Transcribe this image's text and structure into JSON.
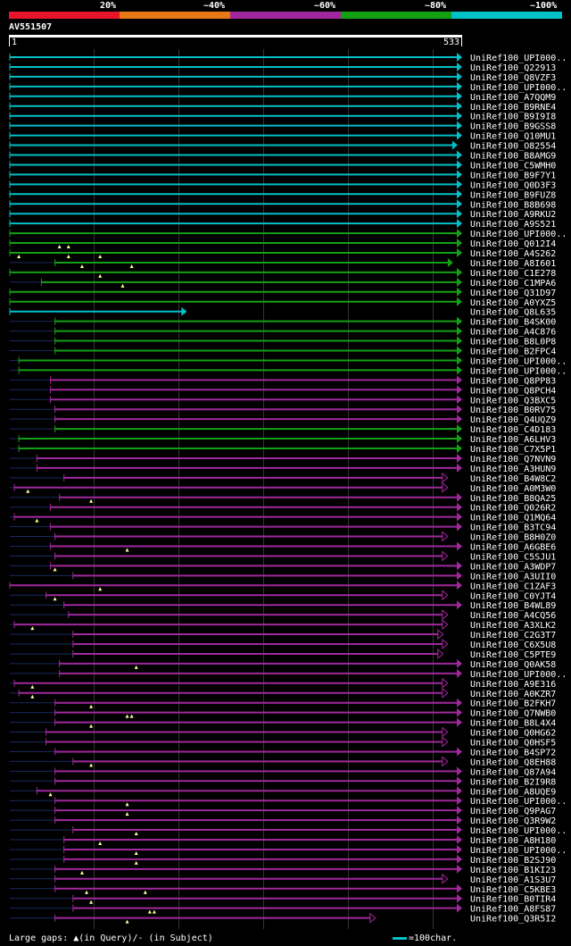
{
  "legend": [
    {
      "label": "20%",
      "color": "#e8142a"
    },
    {
      "label": "~40%",
      "color": "#e87814"
    },
    {
      "label": "~60%",
      "color": "#a0289c"
    },
    {
      "label": "~80%",
      "color": "#14a014"
    },
    {
      "label": "~100%",
      "color": "#00c0c8"
    }
  ],
  "query": "AV551507",
  "ruler": {
    "start": "1",
    "end": "533"
  },
  "footer": {
    "gaps": "Large gaps: ▲(in Query)/- (in Subject)",
    "scale": "=100char."
  },
  "colors": {
    "cyan": "#00c0c8",
    "green": "#14a014",
    "purple": "#a0289c",
    "dim": "#1a2a5a",
    "gap": "#ffff99"
  },
  "hits": [
    {
      "id": "UniRef100_UPI000..",
      "c": "cyan",
      "s": 0.0,
      "e": 1.0,
      "t": "a"
    },
    {
      "id": "UniRef100_Q22913",
      "c": "cyan",
      "s": 0.0,
      "e": 1.0,
      "t": "a"
    },
    {
      "id": "UniRef100_Q8VZF3",
      "c": "cyan",
      "s": 0.0,
      "e": 1.0,
      "t": "a"
    },
    {
      "id": "UniRef100_UPI000..",
      "c": "cyan",
      "s": 0.0,
      "e": 1.0,
      "t": "a"
    },
    {
      "id": "UniRef100_A7QQM9",
      "c": "cyan",
      "s": 0.0,
      "e": 1.0,
      "t": "a"
    },
    {
      "id": "UniRef100_B9RNE4",
      "c": "cyan",
      "s": 0.0,
      "e": 1.0,
      "t": "a"
    },
    {
      "id": "UniRef100_B9I9I8",
      "c": "cyan",
      "s": 0.0,
      "e": 1.0,
      "t": "a"
    },
    {
      "id": "UniRef100_B9GSS8",
      "c": "cyan",
      "s": 0.0,
      "e": 1.0,
      "t": "a"
    },
    {
      "id": "UniRef100_Q10MU1",
      "c": "cyan",
      "s": 0.0,
      "e": 1.0,
      "t": "a"
    },
    {
      "id": "UniRef100_O82554",
      "c": "cyan",
      "s": 0.0,
      "e": 0.99,
      "t": "a"
    },
    {
      "id": "UniRef100_B8AMG9",
      "c": "cyan",
      "s": 0.0,
      "e": 1.0,
      "t": "a"
    },
    {
      "id": "UniRef100_C5WMH0",
      "c": "cyan",
      "s": 0.0,
      "e": 1.0,
      "t": "a"
    },
    {
      "id": "UniRef100_B9F7Y1",
      "c": "cyan",
      "s": 0.0,
      "e": 1.0,
      "t": "a"
    },
    {
      "id": "UniRef100_Q0D3F3",
      "c": "cyan",
      "s": 0.0,
      "e": 1.0,
      "t": "a"
    },
    {
      "id": "UniRef100_B9FUZ8",
      "c": "cyan",
      "s": 0.0,
      "e": 1.0,
      "t": "a"
    },
    {
      "id": "UniRef100_B8B698",
      "c": "cyan",
      "s": 0.0,
      "e": 1.0,
      "t": "a"
    },
    {
      "id": "UniRef100_A9RKU2",
      "c": "cyan",
      "s": 0.0,
      "e": 1.0,
      "t": "a"
    },
    {
      "id": "UniRef100_A9S521",
      "c": "cyan",
      "s": 0.0,
      "e": 1.0,
      "t": "a"
    },
    {
      "id": "UniRef100_UPI000..",
      "c": "green",
      "s": 0.0,
      "e": 1.0,
      "t": "a"
    },
    {
      "id": "UniRef100_Q012I4",
      "c": "green",
      "s": 0.0,
      "e": 1.0,
      "t": "a",
      "g": [
        0.11,
        0.13
      ]
    },
    {
      "id": "UniRef100_A4S262",
      "c": "green",
      "s": 0.0,
      "e": 1.0,
      "t": "a",
      "g": [
        0.02,
        0.13,
        0.2
      ]
    },
    {
      "id": "UniRef100_A8I601",
      "c": "green",
      "s": 0.1,
      "e": 0.98,
      "t": "a",
      "g": [
        0.16,
        0.27
      ]
    },
    {
      "id": "UniRef100_C1E278",
      "c": "green",
      "s": 0.0,
      "e": 1.0,
      "t": "a",
      "g": [
        0.2
      ]
    },
    {
      "id": "UniRef100_C1MPA6",
      "c": "green",
      "s": 0.07,
      "e": 1.0,
      "t": "a",
      "g": [
        0.25
      ]
    },
    {
      "id": "UniRef100_Q31D97",
      "c": "green",
      "s": 0.0,
      "e": 1.0,
      "t": "a"
    },
    {
      "id": "UniRef100_A0YXZ5",
      "c": "green",
      "s": 0.0,
      "e": 1.0,
      "t": "a"
    },
    {
      "id": "UniRef100_Q8L635",
      "c": "cyan",
      "s": 0.0,
      "e": 0.39,
      "t": "a"
    },
    {
      "id": "UniRef100_B4SK00",
      "c": "green",
      "s": 0.1,
      "e": 1.0,
      "t": "a"
    },
    {
      "id": "UniRef100_A4C876",
      "c": "green",
      "s": 0.1,
      "e": 1.0,
      "t": "a"
    },
    {
      "id": "UniRef100_B8L0P8",
      "c": "green",
      "s": 0.1,
      "e": 1.0,
      "t": "a"
    },
    {
      "id": "UniRef100_B2FPC4",
      "c": "green",
      "s": 0.1,
      "e": 1.0,
      "t": "a"
    },
    {
      "id": "UniRef100_UPI000..",
      "c": "green",
      "s": 0.02,
      "e": 1.0,
      "t": "a"
    },
    {
      "id": "UniRef100_UPI000..",
      "c": "green",
      "s": 0.02,
      "e": 1.0,
      "t": "a"
    },
    {
      "id": "UniRef100_Q8PP83",
      "c": "purple",
      "s": 0.09,
      "e": 1.0,
      "t": "a"
    },
    {
      "id": "UniRef100_Q8PCH4",
      "c": "purple",
      "s": 0.09,
      "e": 1.0,
      "t": "a"
    },
    {
      "id": "UniRef100_Q3BXC5",
      "c": "purple",
      "s": 0.09,
      "e": 1.0,
      "t": "a"
    },
    {
      "id": "UniRef100_B0RV75",
      "c": "purple",
      "s": 0.1,
      "e": 1.0,
      "t": "a"
    },
    {
      "id": "UniRef100_Q4UQZ9",
      "c": "purple",
      "s": 0.1,
      "e": 1.0,
      "t": "a"
    },
    {
      "id": "UniRef100_C4D183",
      "c": "green",
      "s": 0.1,
      "e": 1.0,
      "t": "a"
    },
    {
      "id": "UniRef100_A6LHV3",
      "c": "green",
      "s": 0.02,
      "e": 1.0,
      "t": "a"
    },
    {
      "id": "UniRef100_C7X5P1",
      "c": "green",
      "s": 0.02,
      "e": 1.0,
      "t": "a"
    },
    {
      "id": "UniRef100_Q7NVN9",
      "c": "purple",
      "s": 0.06,
      "e": 1.0,
      "t": "a"
    },
    {
      "id": "UniRef100_A3HUN9",
      "c": "purple",
      "s": 0.06,
      "e": 1.0,
      "t": "a"
    },
    {
      "id": "UniRef100_B4W8C2",
      "c": "purple",
      "s": 0.12,
      "e": 0.97,
      "t": "b"
    },
    {
      "id": "UniRef100_A0M3W0",
      "c": "purple",
      "s": 0.01,
      "e": 0.97,
      "t": "b",
      "g": [
        0.04
      ]
    },
    {
      "id": "UniRef100_B8QA25",
      "c": "purple",
      "s": 0.11,
      "e": 1.0,
      "t": "a",
      "g": [
        0.18
      ]
    },
    {
      "id": "UniRef100_Q026R2",
      "c": "purple",
      "s": 0.09,
      "e": 1.0,
      "t": "a"
    },
    {
      "id": "UniRef100_Q1MQ64",
      "c": "purple",
      "s": 0.01,
      "e": 1.0,
      "t": "a",
      "g": [
        0.06
      ]
    },
    {
      "id": "UniRef100_B3TC94",
      "c": "purple",
      "s": 0.09,
      "e": 1.0,
      "t": "a"
    },
    {
      "id": "UniRef100_B8H0Z0",
      "c": "purple",
      "s": 0.1,
      "e": 0.97,
      "t": "b"
    },
    {
      "id": "UniRef100_A6GBE6",
      "c": "purple",
      "s": 0.09,
      "e": 1.0,
      "t": "a",
      "g": [
        0.26
      ]
    },
    {
      "id": "UniRef100_C5SJU1",
      "c": "purple",
      "s": 0.1,
      "e": 0.97,
      "t": "b"
    },
    {
      "id": "UniRef100_A3WDP7",
      "c": "purple",
      "s": 0.09,
      "e": 1.0,
      "t": "a",
      "g": [
        0.1
      ]
    },
    {
      "id": "UniRef100_A3UII0",
      "c": "purple",
      "s": 0.14,
      "e": 1.0,
      "t": "a"
    },
    {
      "id": "UniRef100_C1ZAF3",
      "c": "purple",
      "s": 0.0,
      "e": 1.0,
      "t": "a",
      "g": [
        0.2
      ]
    },
    {
      "id": "UniRef100_C0YJT4",
      "c": "purple",
      "s": 0.08,
      "e": 0.97,
      "t": "b",
      "g": [
        0.1
      ]
    },
    {
      "id": "UniRef100_B4WL89",
      "c": "purple",
      "s": 0.12,
      "e": 1.0,
      "t": "a"
    },
    {
      "id": "UniRef100_A4CQ56",
      "c": "purple",
      "s": 0.13,
      "e": 0.97,
      "t": "b"
    },
    {
      "id": "UniRef100_A3XLK2",
      "c": "purple",
      "s": 0.01,
      "e": 0.97,
      "t": "b",
      "g": [
        0.05
      ]
    },
    {
      "id": "UniRef100_C2G3T7",
      "c": "purple",
      "s": 0.14,
      "e": 0.96,
      "t": "b"
    },
    {
      "id": "UniRef100_C6X5U8",
      "c": "purple",
      "s": 0.14,
      "e": 0.97,
      "t": "b"
    },
    {
      "id": "UniRef100_C5PTE9",
      "c": "purple",
      "s": 0.14,
      "e": 0.96,
      "t": "b"
    },
    {
      "id": "UniRef100_Q0AK58",
      "c": "purple",
      "s": 0.11,
      "e": 1.0,
      "t": "a",
      "g": [
        0.28
      ]
    },
    {
      "id": "UniRef100_UPI000..",
      "c": "purple",
      "s": 0.11,
      "e": 1.0,
      "t": "a"
    },
    {
      "id": "UniRef100_A9E316",
      "c": "purple",
      "s": 0.01,
      "e": 0.97,
      "t": "b",
      "g": [
        0.05
      ]
    },
    {
      "id": "UniRef100_A0KZR7",
      "c": "purple",
      "s": 0.02,
      "e": 0.97,
      "t": "b",
      "g": [
        0.05
      ]
    },
    {
      "id": "UniRef100_B2FKH7",
      "c": "purple",
      "s": 0.1,
      "e": 1.0,
      "t": "a",
      "g": [
        0.18
      ]
    },
    {
      "id": "UniRef100_Q7NWB0",
      "c": "purple",
      "s": 0.1,
      "e": 1.0,
      "t": "a",
      "g": [
        0.26,
        0.27
      ]
    },
    {
      "id": "UniRef100_B8L4X4",
      "c": "purple",
      "s": 0.1,
      "e": 1.0,
      "t": "a",
      "g": [
        0.18
      ]
    },
    {
      "id": "UniRef100_Q0HG62",
      "c": "purple",
      "s": 0.08,
      "e": 0.97,
      "t": "b"
    },
    {
      "id": "UniRef100_Q0HSF5",
      "c": "purple",
      "s": 0.08,
      "e": 0.97,
      "t": "b"
    },
    {
      "id": "UniRef100_B4SP72",
      "c": "purple",
      "s": 0.1,
      "e": 1.0,
      "t": "a"
    },
    {
      "id": "UniRef100_Q8EH88",
      "c": "purple",
      "s": 0.14,
      "e": 0.97,
      "t": "b",
      "g": [
        0.18
      ]
    },
    {
      "id": "UniRef100_Q87A94",
      "c": "purple",
      "s": 0.1,
      "e": 1.0,
      "t": "a"
    },
    {
      "id": "UniRef100_B2I9R8",
      "c": "purple",
      "s": 0.1,
      "e": 1.0,
      "t": "a"
    },
    {
      "id": "UniRef100_A8UQE9",
      "c": "purple",
      "s": 0.06,
      "e": 1.0,
      "t": "a",
      "g": [
        0.09
      ]
    },
    {
      "id": "UniRef100_UPI000..",
      "c": "purple",
      "s": 0.1,
      "e": 1.0,
      "t": "a",
      "g": [
        0.26
      ]
    },
    {
      "id": "UniRef100_Q9PAG7",
      "c": "purple",
      "s": 0.1,
      "e": 1.0,
      "t": "a",
      "g": [
        0.26
      ]
    },
    {
      "id": "UniRef100_Q3R9W2",
      "c": "purple",
      "s": 0.1,
      "e": 1.0,
      "t": "a"
    },
    {
      "id": "UniRef100_UPI000..",
      "c": "purple",
      "s": 0.14,
      "e": 1.0,
      "t": "a",
      "g": [
        0.28
      ]
    },
    {
      "id": "UniRef100_A8H180",
      "c": "purple",
      "s": 0.12,
      "e": 1.0,
      "t": "a",
      "g": [
        0.2
      ]
    },
    {
      "id": "UniRef100_UPI000..",
      "c": "purple",
      "s": 0.12,
      "e": 1.0,
      "t": "a",
      "g": [
        0.28
      ]
    },
    {
      "id": "UniRef100_B2SJ90",
      "c": "purple",
      "s": 0.12,
      "e": 1.0,
      "t": "a",
      "g": [
        0.28
      ]
    },
    {
      "id": "UniRef100_B1KI23",
      "c": "purple",
      "s": 0.1,
      "e": 1.0,
      "t": "a",
      "g": [
        0.16
      ]
    },
    {
      "id": "UniRef100_A1S3U7",
      "c": "purple",
      "s": 0.1,
      "e": 0.97,
      "t": "b"
    },
    {
      "id": "UniRef100_C5KBE3",
      "c": "purple",
      "s": 0.1,
      "e": 1.0,
      "t": "a",
      "g": [
        0.17,
        0.3
      ]
    },
    {
      "id": "UniRef100_B0TIR4",
      "c": "purple",
      "s": 0.14,
      "e": 1.0,
      "t": "a",
      "g": [
        0.18
      ]
    },
    {
      "id": "UniRef100_A8FS87",
      "c": "purple",
      "s": 0.14,
      "e": 1.0,
      "t": "a",
      "g": [
        0.31,
        0.32
      ]
    },
    {
      "id": "UniRef100_Q3R5I2",
      "c": "purple",
      "s": 0.1,
      "e": 0.81,
      "t": "b",
      "g": [
        0.26
      ]
    }
  ]
}
